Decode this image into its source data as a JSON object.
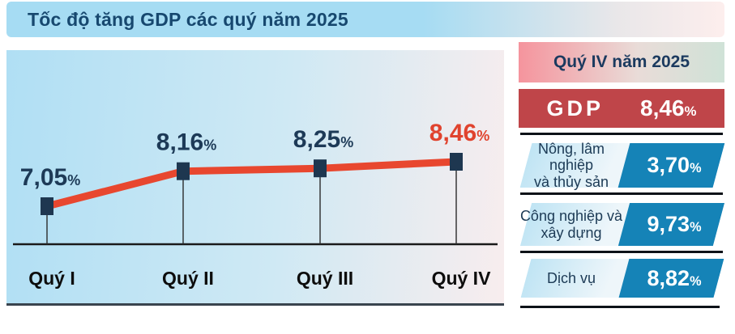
{
  "title": "Tốc độ tăng GDP các quý năm 2025",
  "chart_data": {
    "type": "line",
    "title": "Tốc độ tăng GDP các quý năm 2025",
    "categories": [
      "Quý I",
      "Quý II",
      "Quý III",
      "Quý IV"
    ],
    "values": [
      7.05,
      8.16,
      8.25,
      8.46
    ],
    "value_labels": [
      "7,05",
      "8,16",
      "8,25",
      "8,46"
    ],
    "unit": "%",
    "xlabel": "",
    "ylabel": "",
    "ylim": [
      7.05,
      8.46
    ],
    "grid": false,
    "legend": "none",
    "line_color": "#e8472f",
    "marker_color": "#1e3750",
    "label_color": "#1d3a57",
    "last_label_color": "#e0432e",
    "axis_color": "#1a1a1a"
  },
  "panel": {
    "header": "Quý IV năm 2025",
    "gdp": {
      "label": "GDP",
      "value": "8,46",
      "unit": "%"
    },
    "sectors": [
      {
        "name_line1": "Nông, lâm nghiệp",
        "name_line2": "và thủy sản",
        "value": "3,70",
        "unit": "%"
      },
      {
        "name_line1": "Công nghiệp và",
        "name_line2": "xây dựng",
        "value": "9,73",
        "unit": "%"
      },
      {
        "name_line1": "Dịch vụ",
        "name_line2": "",
        "value": "8,82",
        "unit": "%"
      }
    ]
  },
  "colors": {
    "title_bar_blue": "#a6dcf3",
    "title_text_navy": "#17486f",
    "chart_bg_left": "#b0dff4",
    "chart_bg_right": "#f8edee",
    "line_red": "#e8472f",
    "marker_navy": "#1e3750",
    "gdp_bar_red": "#bf4549",
    "sector_teal": "#1583b7",
    "header_pink": "#f5949d"
  }
}
